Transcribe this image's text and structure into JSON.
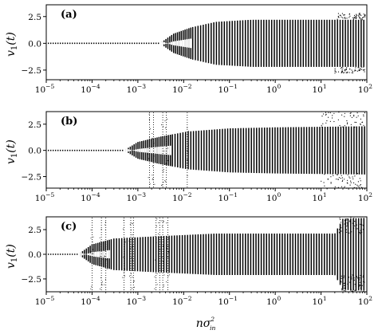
{
  "chart_data": [
    {
      "type": "scatter",
      "panel_label": "(a)",
      "ylabel": "v_1(t)",
      "xscale": "log",
      "xlim": [
        1e-05,
        100
      ],
      "ylim": [
        -3.4,
        3.6
      ],
      "x_tick_values": [
        1e-05,
        0.0001,
        0.001,
        0.01,
        0.1,
        1,
        10,
        100
      ],
      "x_tick_labels": [
        [
          "10",
          "−5"
        ],
        [
          "10",
          "−4"
        ],
        [
          "10",
          "−3"
        ],
        [
          "10",
          "−2"
        ],
        [
          "10",
          "−1"
        ],
        [
          "10",
          "0"
        ],
        [
          "10",
          "1"
        ],
        [
          "10",
          "2"
        ]
      ],
      "y_tick_values": [
        2.5,
        0.0,
        -2.5
      ],
      "y_tick_labels": [
        "2.5",
        "0.0",
        "−2.5"
      ],
      "bifurcation_x": 0.003,
      "settled_amplitude": 2.2,
      "envelope": [
        [
          0.003,
          0.0
        ],
        [
          0.006,
          0.9
        ],
        [
          0.015,
          1.5
        ],
        [
          0.05,
          2.0
        ],
        [
          0.3,
          2.2
        ],
        [
          100,
          2.2
        ]
      ],
      "noise_tail_from_x": 20,
      "noise_tail_max": 2.8,
      "scatter_bands_x": []
    },
    {
      "type": "scatter",
      "panel_label": "(b)",
      "ylabel": "v_1(t)",
      "xscale": "log",
      "xlim": [
        1e-05,
        100
      ],
      "ylim": [
        -3.6,
        3.7
      ],
      "x_tick_values": [
        1e-05,
        0.0001,
        0.001,
        0.01,
        0.1,
        1,
        10,
        100
      ],
      "x_tick_labels": [
        [
          "10",
          "−5"
        ],
        [
          "10",
          "−4"
        ],
        [
          "10",
          "−3"
        ],
        [
          "10",
          "−2"
        ],
        [
          "10",
          "−1"
        ],
        [
          "10",
          "0"
        ],
        [
          "10",
          "1"
        ],
        [
          "10",
          "2"
        ]
      ],
      "y_tick_values": [
        2.5,
        0.0,
        -2.5
      ],
      "y_tick_labels": [
        "2.5",
        "0.0",
        "−2.5"
      ],
      "bifurcation_x": 0.0005,
      "settled_amplitude": 2.2,
      "envelope": [
        [
          0.0005,
          0.0
        ],
        [
          0.001,
          0.8
        ],
        [
          0.003,
          1.3
        ],
        [
          0.012,
          1.8
        ],
        [
          0.1,
          2.1
        ],
        [
          1,
          2.2
        ],
        [
          100,
          2.3
        ]
      ],
      "noise_tail_from_x": 10,
      "noise_tail_max": 3.7,
      "scatter_bands_x": [
        0.0018,
        0.0022,
        0.0035,
        0.0042,
        0.012
      ]
    },
    {
      "type": "scatter",
      "panel_label": "(c)",
      "ylabel": "v_1(t)",
      "xscale": "log",
      "xlim": [
        1e-05,
        100
      ],
      "ylim": [
        -3.8,
        3.8
      ],
      "x_tick_values": [
        1e-05,
        0.0001,
        0.001,
        0.01,
        0.1,
        1,
        10,
        100
      ],
      "x_tick_labels": [
        [
          "10",
          "−5"
        ],
        [
          "10",
          "−4"
        ],
        [
          "10",
          "−3"
        ],
        [
          "10",
          "−2"
        ],
        [
          "10",
          "−1"
        ],
        [
          "10",
          "0"
        ],
        [
          "10",
          "1"
        ],
        [
          "10",
          "2"
        ]
      ],
      "y_tick_values": [
        2.5,
        0.0,
        -2.5
      ],
      "y_tick_labels": [
        "2.5",
        "0.0",
        "−2.5"
      ],
      "bifurcation_x": 5e-05,
      "settled_amplitude": 2.1,
      "envelope": [
        [
          5e-05,
          0.0
        ],
        [
          0.0001,
          1.0
        ],
        [
          0.0003,
          1.6
        ],
        [
          0.002,
          1.8
        ],
        [
          0.05,
          2.1
        ],
        [
          20,
          2.1
        ],
        [
          30,
          3.6
        ],
        [
          100,
          3.7
        ]
      ],
      "noise_tail_from_x": 25,
      "noise_tail_max": 3.8,
      "scatter_bands_x": [
        0.0001,
        0.00016,
        0.0002,
        0.0005,
        0.0007,
        0.0008,
        0.0025,
        0.003,
        0.0035,
        0.0045
      ]
    }
  ],
  "xlabel": {
    "base": "nσ",
    "sup": "2",
    "sub": "in"
  }
}
